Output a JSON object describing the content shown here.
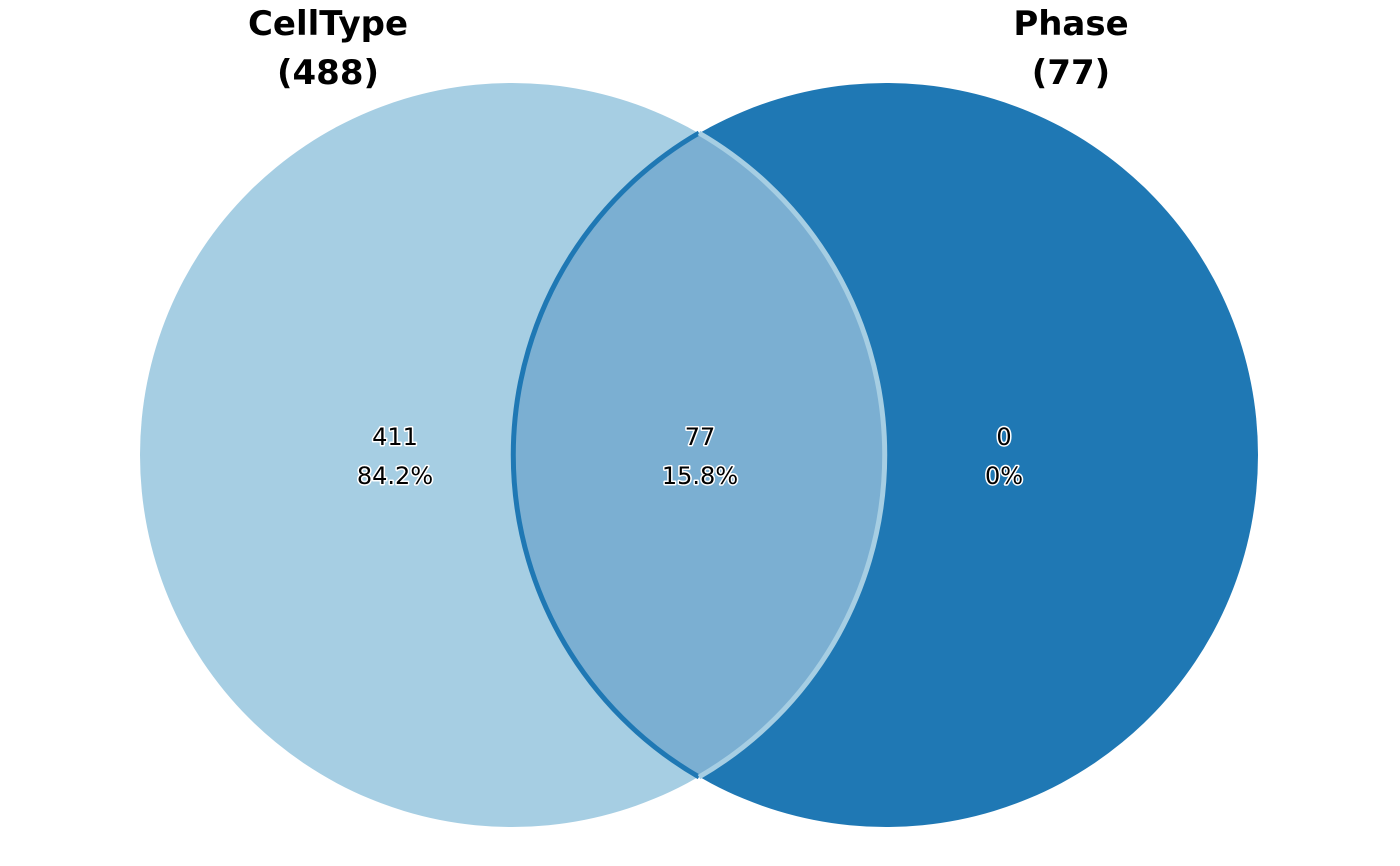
{
  "diagram": {
    "type": "venn",
    "sets": [
      {
        "name": "CellType",
        "count_label": "(488)",
        "size": 488,
        "color": "#a6cee3"
      },
      {
        "name": "Phase",
        "count_label": "(77)",
        "size": 77,
        "color": "#1f78b4"
      }
    ],
    "intersection_color": "#7bafd2",
    "regions": [
      {
        "id": "celltype-only",
        "count": "411",
        "percent": "84.2%"
      },
      {
        "id": "intersection",
        "count": "77",
        "percent": "15.8%"
      },
      {
        "id": "phase-only",
        "count": "0",
        "percent": "0%"
      }
    ]
  }
}
